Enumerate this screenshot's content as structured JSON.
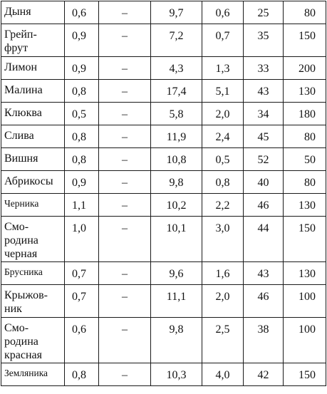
{
  "rows": [
    {
      "name": "Дыня",
      "c1": "0,6",
      "c2": "–",
      "c3": "9,7",
      "c4": "0,6",
      "c5": "25",
      "c6": "80"
    },
    {
      "name": "Грейп-\nфрут",
      "c1": "0,9",
      "c2": "–",
      "c3": "7,2",
      "c4": "0,7",
      "c5": "35",
      "c6": "150"
    },
    {
      "name": "Лимон",
      "c1": "0,9",
      "c2": "–",
      "c3": "4,3",
      "c4": "1,3",
      "c5": "33",
      "c6": "200"
    },
    {
      "name": "Малина",
      "c1": "0,8",
      "c2": "–",
      "c3": "17,4",
      "c4": "5,1",
      "c5": "43",
      "c6": "130"
    },
    {
      "name": "Клюква",
      "c1": "0,5",
      "c2": "–",
      "c3": "5,8",
      "c4": "2,0",
      "c5": "34",
      "c6": "180"
    },
    {
      "name": "Слива",
      "c1": "0,8",
      "c2": "–",
      "c3": "11,9",
      "c4": "2,4",
      "c5": "45",
      "c6": "80"
    },
    {
      "name": "Вишня",
      "c1": "0,8",
      "c2": "–",
      "c3": "10,8",
      "c4": "0,5",
      "c5": "52",
      "c6": "50"
    },
    {
      "name": "Абрикосы",
      "c1": "0,9",
      "c2": "–",
      "c3": "9,8",
      "c4": "0,8",
      "c5": "40",
      "c6": "80"
    },
    {
      "name": "Черника",
      "c1": "1,1",
      "c2": "–",
      "c3": "10,2",
      "c4": "2,2",
      "c5": "46",
      "c6": "130"
    },
    {
      "name": "Смо-\nродина\nчерная",
      "c1": "1,0",
      "c2": "–",
      "c3": "10,1",
      "c4": "3,0",
      "c5": "44",
      "c6": "150"
    },
    {
      "name": "Брусника",
      "c1": "0,7",
      "c2": "–",
      "c3": "9,6",
      "c4": "1,6",
      "c5": "43",
      "c6": "130"
    },
    {
      "name": "Крыжов-\nник",
      "c1": "0,7",
      "c2": "–",
      "c3": "11,1",
      "c4": "2,0",
      "c5": "46",
      "c6": "100"
    },
    {
      "name": "Смо-\nродина\nкрасная",
      "c1": "0,6",
      "c2": "–",
      "c3": "9,8",
      "c4": "2,5",
      "c5": "38",
      "c6": "100"
    },
    {
      "name": "Земляника",
      "c1": "0,8",
      "c2": "–",
      "c3": "10,3",
      "c4": "4,0",
      "c5": "42",
      "c6": "150"
    }
  ]
}
